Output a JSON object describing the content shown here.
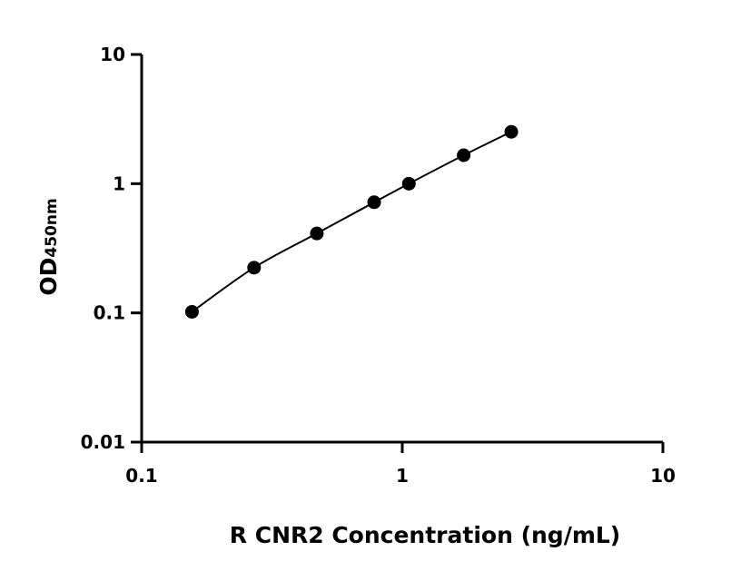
{
  "chart_data": {
    "type": "scatter",
    "xscale": "log",
    "yscale": "log",
    "xlim": [
      0.1,
      10
    ],
    "ylim": [
      0.01,
      10
    ],
    "xlabel": "R CNR2 Concentration (ng/mL)",
    "ylabel_main": "OD",
    "ylabel_sub": "450nm",
    "x_ticks": [
      {
        "value": 0.1,
        "label": "0.1"
      },
      {
        "value": 1,
        "label": "1"
      },
      {
        "value": 10,
        "label": "10"
      }
    ],
    "y_ticks": [
      {
        "value": 0.01,
        "label": "0.01"
      },
      {
        "value": 0.1,
        "label": "0.1"
      },
      {
        "value": 1,
        "label": "1"
      },
      {
        "value": 10,
        "label": "10"
      }
    ],
    "grid": false,
    "fit_line": true,
    "series": [
      {
        "x": [
          0.156,
          0.27,
          0.47,
          0.78,
          1.06,
          1.72,
          2.62
        ],
        "y": [
          0.102,
          0.224,
          0.412,
          0.718,
          1.0,
          1.66,
          2.52
        ]
      }
    ]
  }
}
